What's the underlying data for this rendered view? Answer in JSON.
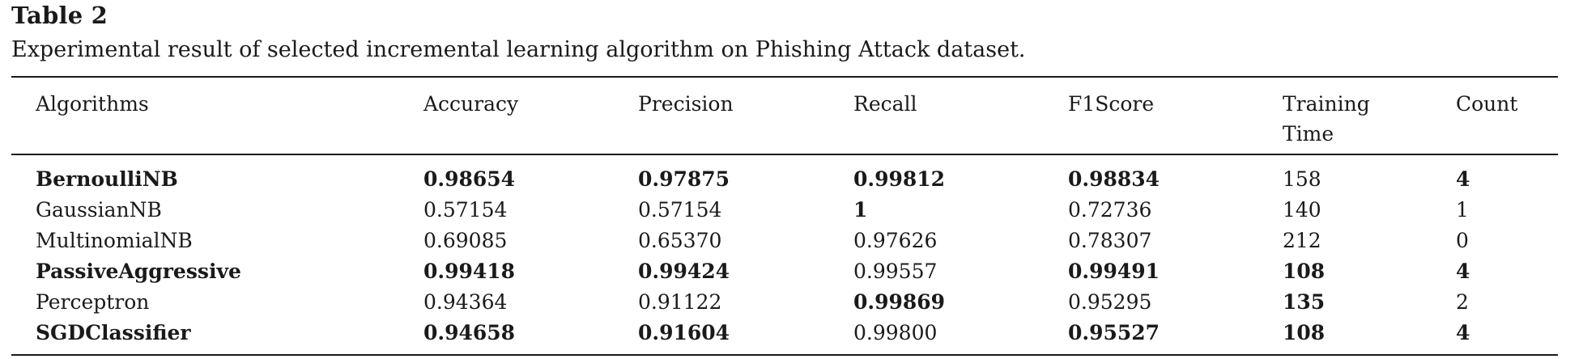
{
  "table": {
    "label": "Table 2",
    "caption": "Experimental result of selected incremental learning algorithm on Phishing Attack dataset.",
    "headers": [
      {
        "lines": [
          "Algorithms"
        ]
      },
      {
        "lines": [
          "Accuracy"
        ]
      },
      {
        "lines": [
          "Precision"
        ]
      },
      {
        "lines": [
          "Recall"
        ]
      },
      {
        "lines": [
          "F1Score"
        ]
      },
      {
        "lines": [
          "Training",
          "Time"
        ]
      },
      {
        "lines": [
          "Count"
        ]
      }
    ],
    "rows": [
      {
        "cells": [
          {
            "text": "BernoulliNB",
            "bold": true
          },
          {
            "text": "0.98654",
            "bold": true
          },
          {
            "text": "0.97875",
            "bold": true
          },
          {
            "text": "0.99812",
            "bold": true
          },
          {
            "text": "0.98834",
            "bold": true
          },
          {
            "text": "158",
            "bold": false
          },
          {
            "text": "4",
            "bold": true
          }
        ]
      },
      {
        "cells": [
          {
            "text": "GaussianNB",
            "bold": false
          },
          {
            "text": "0.57154",
            "bold": false
          },
          {
            "text": "0.57154",
            "bold": false
          },
          {
            "text": "1",
            "bold": true
          },
          {
            "text": "0.72736",
            "bold": false
          },
          {
            "text": "140",
            "bold": false
          },
          {
            "text": "1",
            "bold": false
          }
        ]
      },
      {
        "cells": [
          {
            "text": "MultinomialNB",
            "bold": false
          },
          {
            "text": "0.69085",
            "bold": false
          },
          {
            "text": "0.65370",
            "bold": false
          },
          {
            "text": "0.97626",
            "bold": false
          },
          {
            "text": "0.78307",
            "bold": false
          },
          {
            "text": "212",
            "bold": false
          },
          {
            "text": "0",
            "bold": false
          }
        ]
      },
      {
        "cells": [
          {
            "text": "PassiveAggressive",
            "bold": true
          },
          {
            "text": "0.99418",
            "bold": true
          },
          {
            "text": "0.99424",
            "bold": true
          },
          {
            "text": "0.99557",
            "bold": false
          },
          {
            "text": "0.99491",
            "bold": true
          },
          {
            "text": "108",
            "bold": true
          },
          {
            "text": "4",
            "bold": true
          }
        ]
      },
      {
        "cells": [
          {
            "text": "Perceptron",
            "bold": false
          },
          {
            "text": "0.94364",
            "bold": false
          },
          {
            "text": "0.91122",
            "bold": false
          },
          {
            "text": "0.99869",
            "bold": true
          },
          {
            "text": "0.95295",
            "bold": false
          },
          {
            "text": "135",
            "bold": true
          },
          {
            "text": "2",
            "bold": false
          }
        ]
      },
      {
        "cells": [
          {
            "text": "SGDClassifier",
            "bold": true
          },
          {
            "text": "0.94658",
            "bold": true
          },
          {
            "text": "0.91604",
            "bold": true
          },
          {
            "text": "0.99800",
            "bold": false
          },
          {
            "text": "0.95527",
            "bold": true
          },
          {
            "text": "108",
            "bold": true
          },
          {
            "text": "4",
            "bold": true
          }
        ]
      }
    ]
  }
}
